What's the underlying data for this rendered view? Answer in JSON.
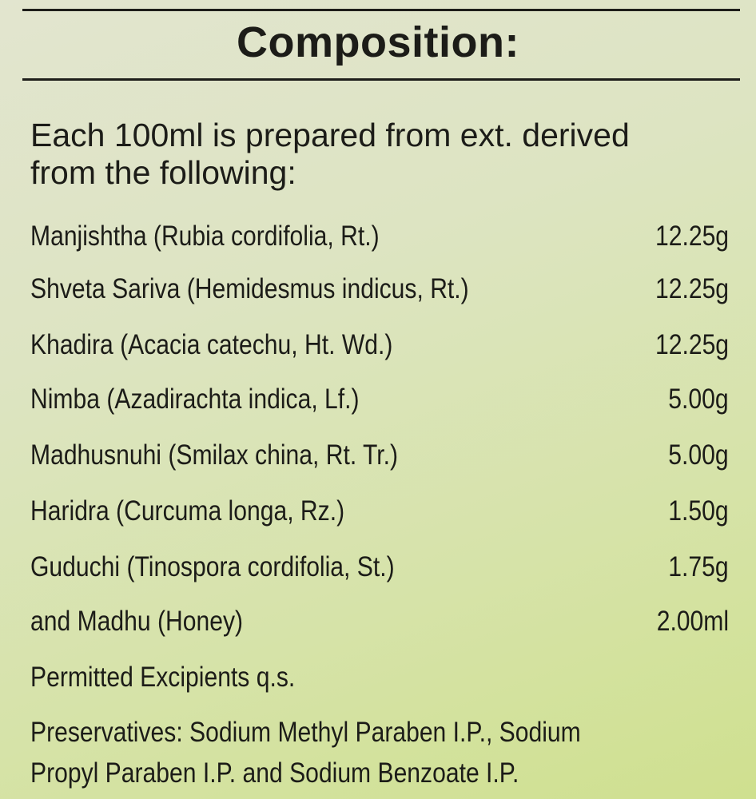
{
  "title": "Composition:",
  "intro": [
    "Each 100ml is prepared from ext. derived",
    "from the following:"
  ],
  "ingredients": [
    {
      "name": "Manjishtha (Rubia cordifolia, Rt.)",
      "amount": "12.25g"
    },
    {
      "name": "Shveta Sariva (Hemidesmus indicus, Rt.)",
      "amount": "12.25g"
    },
    {
      "name": "Khadira (Acacia catechu, Ht. Wd.)",
      "amount": "12.25g"
    },
    {
      "name": "Nimba (Azadirachta indica, Lf.)",
      "amount": "5.00g"
    },
    {
      "name": "Madhusnuhi (Smilax china, Rt. Tr.)",
      "amount": "5.00g"
    },
    {
      "name": "Haridra (Curcuma longa, Rz.)",
      "amount": "1.50g"
    },
    {
      "name": "Guduchi (Tinospora cordifolia, St.)",
      "amount": "1.75g"
    },
    {
      "name": "and Madhu (Honey)",
      "amount": "2.00ml"
    }
  ],
  "excipients": "Permitted Excipients q.s.",
  "preservatives": [
    "Preservatives: Sodium Methyl Paraben I.P., Sodium",
    "Propyl Paraben I.P. and Sodium Benzoate I.P."
  ]
}
